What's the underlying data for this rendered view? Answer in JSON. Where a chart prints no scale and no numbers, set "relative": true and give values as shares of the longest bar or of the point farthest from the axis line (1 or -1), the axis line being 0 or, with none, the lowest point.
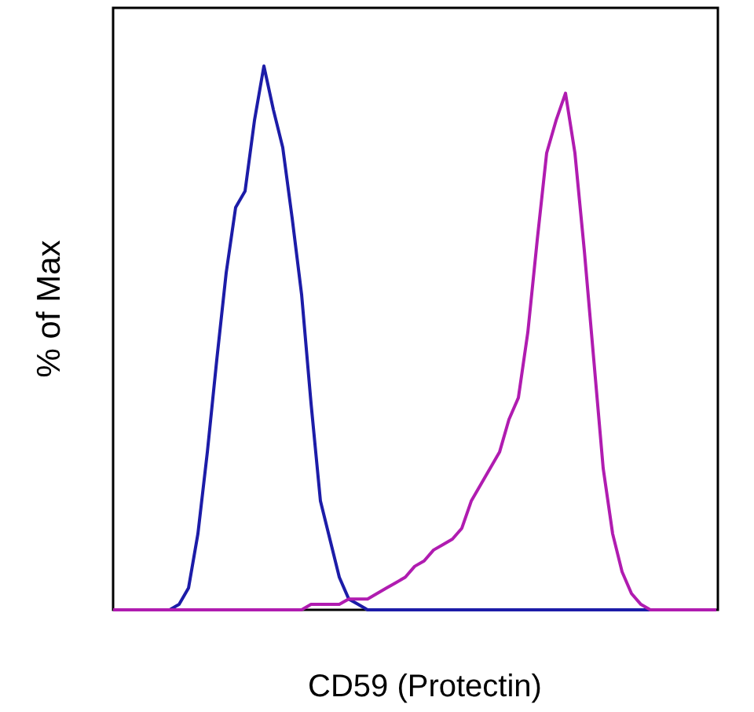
{
  "chart_data": {
    "type": "line",
    "relative": true,
    "xlabel": "CD59 (Protectin)",
    "ylabel": "% of Max",
    "categories": [
      null,
      null,
      null,
      null,
      null,
      null,
      null,
      null,
      null,
      null,
      null,
      null,
      null,
      null,
      null,
      null,
      null,
      null,
      null,
      null,
      null,
      null,
      null,
      null,
      null,
      null,
      null,
      null,
      null,
      null,
      null,
      null,
      null,
      null,
      null,
      null,
      null,
      null,
      null,
      null,
      null,
      null,
      null,
      null,
      null,
      null,
      null,
      null,
      null,
      null,
      null,
      null,
      null,
      null,
      null,
      null,
      null,
      null,
      null,
      null,
      null,
      null,
      null,
      null,
      null
    ],
    "series": [
      {
        "color": "#1c1ca8",
        "values": [
          null,
          null,
          null,
          null,
          null,
          null,
          0,
          0.01,
          0.04,
          0.14,
          0.29,
          0.46,
          0.62,
          0.74,
          0.77,
          0.9,
          1,
          0.92,
          0.85,
          0.72,
          0.58,
          0.38,
          0.2,
          0.13,
          0.06,
          0.02,
          0.01,
          0,
          0,
          0,
          0,
          0,
          0,
          0,
          0,
          0,
          0,
          0,
          0,
          0,
          0,
          0,
          0,
          0,
          0,
          0,
          0,
          0,
          0,
          0,
          0,
          0,
          0,
          0,
          0,
          0,
          0,
          0,
          null,
          null,
          null,
          null,
          null,
          null,
          null
        ]
      },
      {
        "color": "#b01cb0",
        "values": [
          0,
          0,
          0,
          0,
          0,
          0,
          0,
          0,
          0,
          0,
          0,
          0,
          0,
          0,
          0,
          0,
          0,
          0,
          0,
          0,
          0,
          0.01,
          0.01,
          0.01,
          0.01,
          0.02,
          0.02,
          0.02,
          0.03,
          0.04,
          0.05,
          0.06,
          0.08,
          0.09,
          0.11,
          0.12,
          0.13,
          0.15,
          0.2,
          0.23,
          0.26,
          0.29,
          0.35,
          0.39,
          0.51,
          0.68,
          0.84,
          0.9,
          0.95,
          0.84,
          0.66,
          0.46,
          0.26,
          0.14,
          0.07,
          0.03,
          0.01,
          0,
          0,
          0,
          0,
          0,
          0,
          0,
          0
        ]
      }
    ],
    "marker": "none",
    "line_style": "solid"
  }
}
